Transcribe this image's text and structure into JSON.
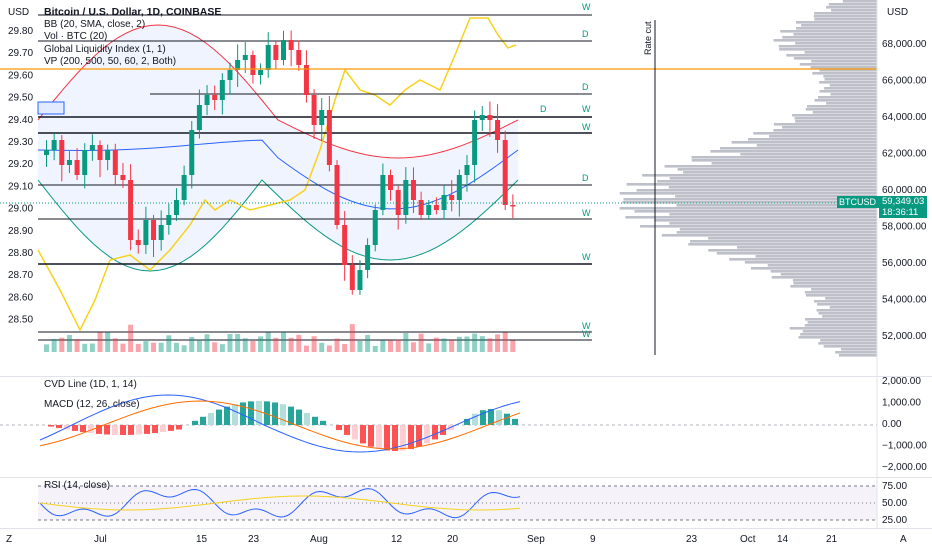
{
  "symbol_title": "Bitcoin / U.S. Dollar, 1D, COINBASE",
  "indicators": {
    "bb": "BB (20, SMA, close, 2)",
    "vol": "Vol · BTC (20)",
    "gli": "Global Liquidity Index (1, 1)",
    "vp": "VP (200, 500, 50, 60, 2, Both)"
  },
  "left_axis_unit": "USD",
  "right_axis_unit": "USD",
  "left_axis_ticks": [
    "29.80",
    "29.70",
    "29.60",
    "29.50",
    "29.40",
    "29.30",
    "29.20",
    "29.10",
    "29.00",
    "28.90",
    "28.80",
    "28.70",
    "28.60",
    "28.50"
  ],
  "right_axis_ticks": [
    "68,000.00",
    "66,000.00",
    "64,000.00",
    "62,000.00",
    "60,000.00",
    "58,000.00",
    "56,000.00",
    "54,000.00",
    "52,000.00"
  ],
  "price_tag": {
    "symbol": "BTCUSD",
    "price": "59,349.03",
    "countdown": "18:36:11"
  },
  "annotation_rate_cut": "Rate cut",
  "level_labels": [
    "W",
    "D",
    "D",
    "D",
    "W",
    "W",
    "D",
    "W",
    "W",
    "W",
    "W"
  ],
  "cvd": {
    "title": "CVD Line (1D, 1, 14)",
    "macd_title": "MACD (12, 26, close)",
    "ticks": [
      "2,000.00",
      "1,000.00",
      "0.00",
      "−1,000.00",
      "−2,000.00"
    ]
  },
  "rsi": {
    "title": "RSI (14, close)",
    "ticks": [
      "75.00",
      "50.00",
      "25.00"
    ]
  },
  "time_axis": [
    "Jul",
    "15",
    "23",
    "Aug",
    "12",
    "20",
    "Sep",
    "9",
    "23",
    "Oct",
    "14",
    "21"
  ],
  "corner_left": "Z",
  "corner_right": "A",
  "colors": {
    "up": "#089981",
    "down": "#f23645",
    "bb_band": "#2962ff",
    "gli": "#f7d21d",
    "profile": "#b2b5be",
    "orange_line": "#ff9800"
  }
}
